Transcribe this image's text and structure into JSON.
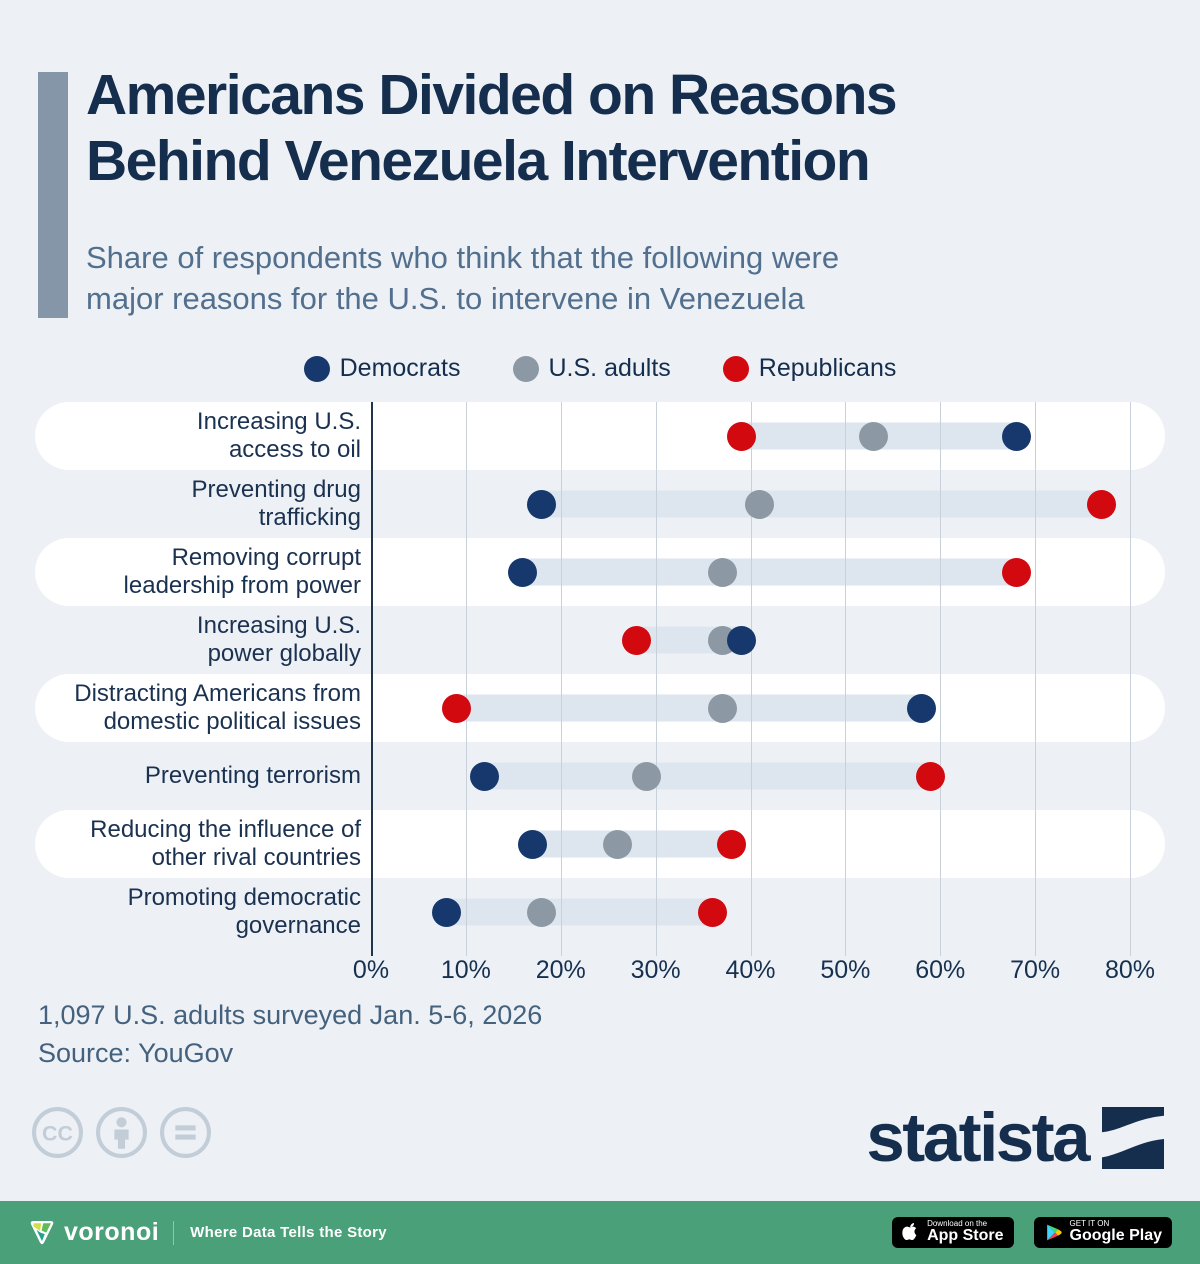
{
  "header": {
    "title_line1": "Americans Divided on Reasons",
    "title_line2": "Behind Venezuela Intervention",
    "subtitle_line1": "Share of respondents who think that the following were",
    "subtitle_line2": "major reasons for the U.S. to intervene in Venezuela"
  },
  "chart_data": {
    "type": "scatter",
    "variant": "dumbbell-dot-plot",
    "unit": "%",
    "grid": true,
    "legend_position": "top",
    "categories": [
      "Increasing U.S. access to oil",
      "Preventing drug trafficking",
      "Removing corrupt leadership from power",
      "Increasing U.S. power globally",
      "Distracting Americans from domestic political issues",
      "Preventing terrorism",
      "Reducing the influence of other rival countries",
      "Promoting democratic governance"
    ],
    "category_lines": [
      [
        "Increasing U.S.",
        "access to oil"
      ],
      [
        "Preventing drug",
        "trafficking"
      ],
      [
        "Removing corrupt",
        "leadership from power"
      ],
      [
        "Increasing U.S.",
        "power globally"
      ],
      [
        "Distracting Americans from",
        "domestic political issues"
      ],
      [
        "Preventing terrorism"
      ],
      [
        "Reducing the influence of",
        "other rival countries"
      ],
      [
        "Promoting democratic",
        "governance"
      ]
    ],
    "series": [
      {
        "name": "Democrats",
        "color": "#17386d",
        "values": [
          68,
          18,
          16,
          39,
          58,
          12,
          17,
          8
        ]
      },
      {
        "name": "U.S. adults",
        "color": "#8c99a4",
        "values": [
          53,
          41,
          37,
          37,
          37,
          29,
          26,
          18
        ]
      },
      {
        "name": "Republicans",
        "color": "#d2090f",
        "values": [
          39,
          77,
          68,
          28,
          9,
          59,
          38,
          36
        ]
      }
    ],
    "x_min": 0,
    "x_max": 80,
    "x_ticks": [
      "0%",
      "10%",
      "20%",
      "30%",
      "40%",
      "50%",
      "60%",
      "70%",
      "80%"
    ]
  },
  "footnotes": {
    "survey": "1,097 U.S. adults surveyed Jan. 5-6, 2026",
    "source": "Source: YouGov"
  },
  "branding": {
    "statista_wordmark": "statista",
    "license_icons": [
      "cc-icon",
      "attribution-icon",
      "no-derivatives-icon"
    ]
  },
  "footer": {
    "brand": "voronoi",
    "tagline": "Where Data Tells the Story",
    "appstore_small": "Download on the",
    "appstore_large": "App Store",
    "googleplay_small": "GET IT ON",
    "googleplay_large": "Google Play"
  }
}
